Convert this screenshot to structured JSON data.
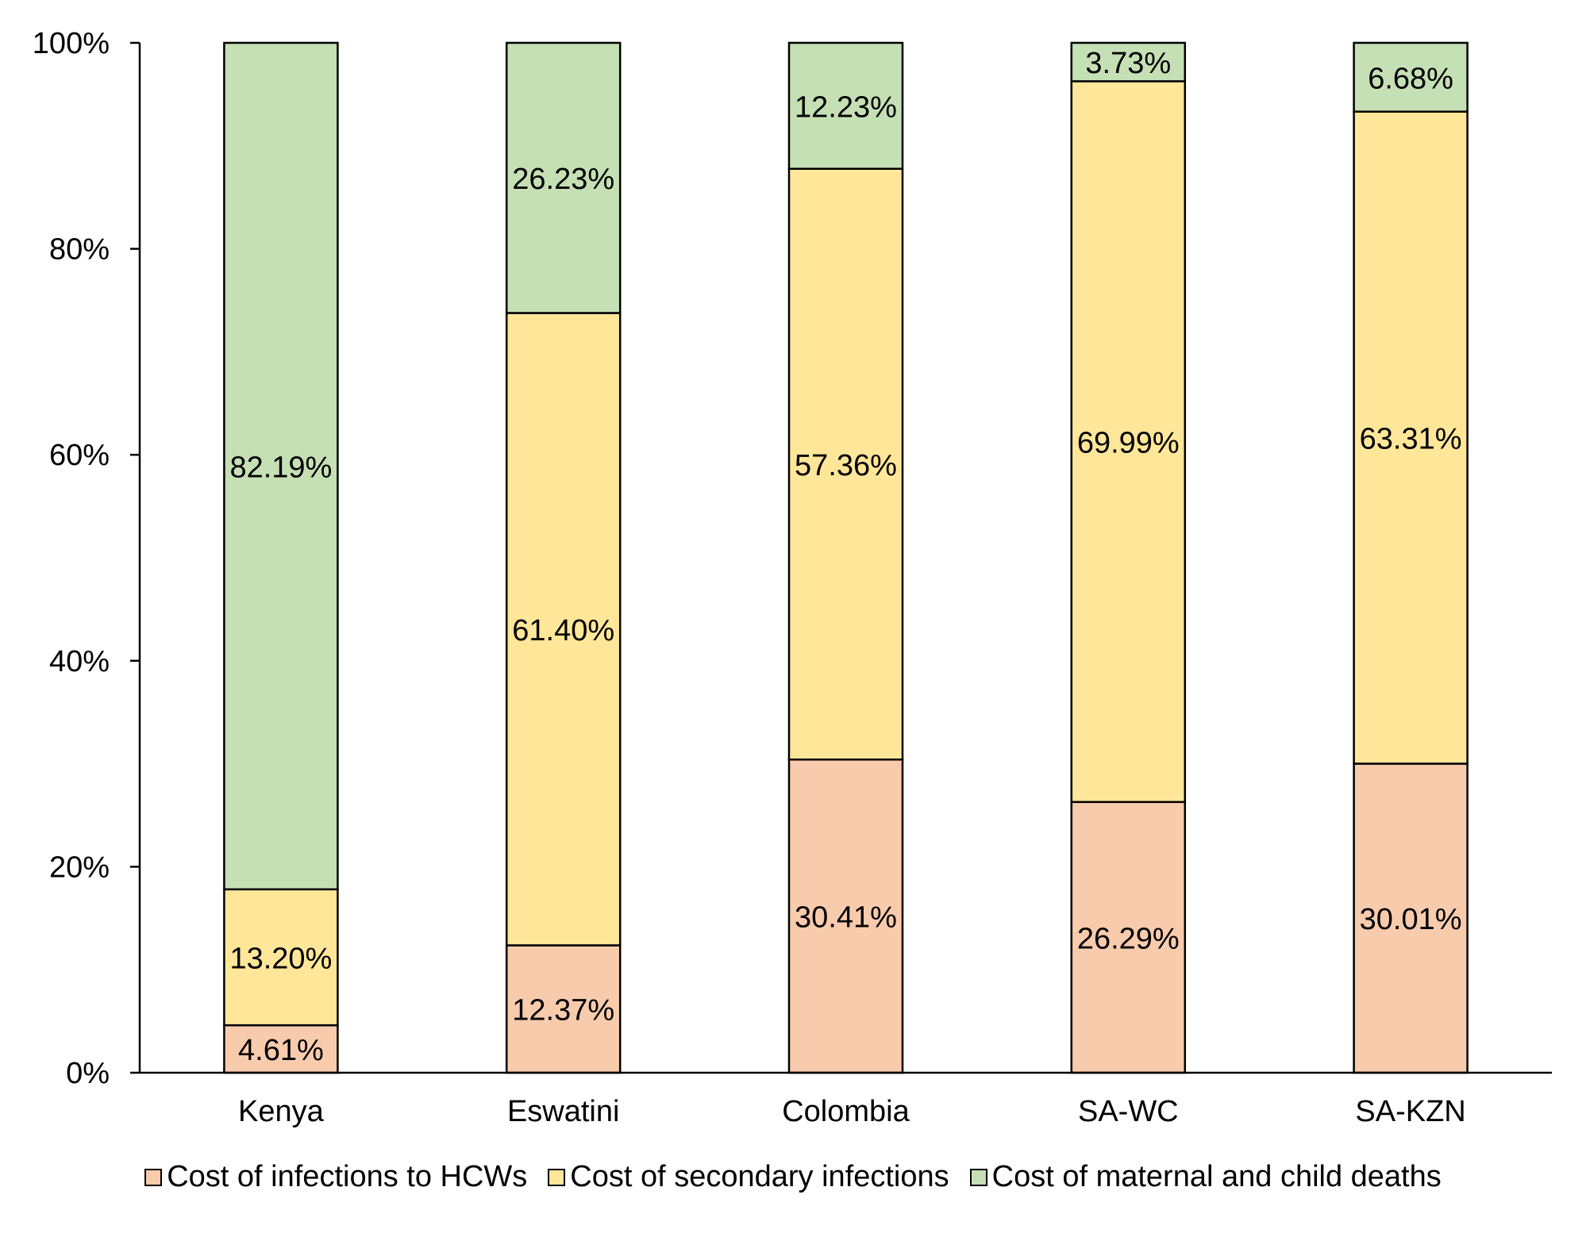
{
  "chart_data": {
    "type": "bar",
    "stacked": true,
    "percent_stacked": true,
    "categories": [
      "Kenya",
      "Eswatini",
      "Colombia",
      "SA-WC",
      "SA-KZN"
    ],
    "series": [
      {
        "name": "Cost of infections to HCWs",
        "color": "#F8CBAD",
        "values": [
          4.61,
          12.37,
          30.41,
          26.29,
          30.01
        ],
        "labels": [
          "4.61%",
          "12.37%",
          "30.41%",
          "26.29%",
          "30.01%"
        ]
      },
      {
        "name": "Cost of secondary infections",
        "color": "#FFE699",
        "values": [
          13.2,
          61.4,
          57.36,
          69.99,
          63.31
        ],
        "labels": [
          "13.20%",
          "61.40%",
          "57.36%",
          "69.99%",
          "63.31%"
        ]
      },
      {
        "name": "Cost of maternal and child deaths",
        "color": "#C5E0B4",
        "values": [
          82.19,
          26.23,
          12.23,
          3.73,
          6.68
        ],
        "labels": [
          "82.19%",
          "26.23%",
          "12.23%",
          "3.73%",
          "6.68%"
        ]
      }
    ],
    "ylim": [
      0,
      100
    ],
    "yticks": [
      0,
      20,
      40,
      60,
      80,
      100
    ],
    "ytick_labels": [
      "0%",
      "20%",
      "40%",
      "60%",
      "80%",
      "100%"
    ],
    "title": "",
    "xlabel": "",
    "ylabel": "",
    "grid": false,
    "legend_position": "bottom"
  }
}
